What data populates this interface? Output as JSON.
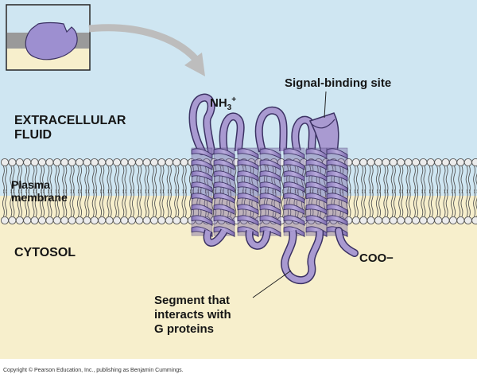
{
  "colors": {
    "extracellular": "#cfe6f2",
    "cytosol": "#f7efcc",
    "protein_fill": "#a99ad1",
    "protein_shade": "#7a6aa6",
    "protein_outline": "#3b3163",
    "lipid_head": "#ececec",
    "lipid_outline": "#555555",
    "arrow": "#bdbdbd",
    "inset_membrane": "#9a9a9a"
  },
  "labels": {
    "extracellular_fluid": [
      "EXTRACELLULAR",
      "FLUID"
    ],
    "plasma_membrane": [
      "Plasma",
      "membrane"
    ],
    "cytosol": "CYTOSOL",
    "nh3": "NH",
    "nh3_sub": "3",
    "nh3_sup": "+",
    "signal_binding_site": "Signal-binding site",
    "coo": "COO−",
    "g_protein_segment": [
      "Segment that",
      "interacts with",
      "G proteins"
    ]
  },
  "inset_icon": "signal-molecule-in-membrane-icon",
  "copyright": "Copyright © Pearson Education, Inc., publishing as Benjamin Cummings."
}
